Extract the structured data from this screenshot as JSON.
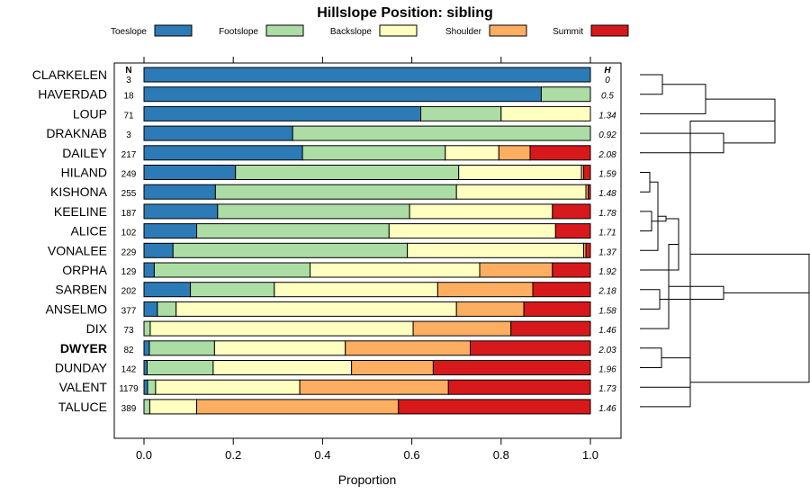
{
  "chart_data": {
    "type": "bar",
    "stacked": true,
    "orientation": "horizontal",
    "title": "Hillslope Position: sibling",
    "xlabel": "Proportion",
    "xlim": [
      0,
      1
    ],
    "xticks": [
      "0.0",
      "0.2",
      "0.4",
      "0.6",
      "0.8",
      "1.0"
    ],
    "n_header": "N",
    "h_header": "H",
    "legend": [
      {
        "name": "Toeslope",
        "color": "#2c7bb6"
      },
      {
        "name": "Footslope",
        "color": "#abdda4"
      },
      {
        "name": "Backslope",
        "color": "#ffffbf"
      },
      {
        "name": "Shoulder",
        "color": "#fdae61"
      },
      {
        "name": "Summit",
        "color": "#d7191c"
      }
    ],
    "highlight": "DWYER",
    "rows": [
      {
        "name": "CLARKELEN",
        "n": "3",
        "h": "0",
        "values": [
          1.0,
          0,
          0,
          0,
          0
        ]
      },
      {
        "name": "HAVERDAD",
        "n": "18",
        "h": "0.5",
        "values": [
          0.89,
          0.11,
          0,
          0,
          0
        ]
      },
      {
        "name": "LOUP",
        "n": "71",
        "h": "1.34",
        "values": [
          0.62,
          0.18,
          0.2,
          0,
          0
        ]
      },
      {
        "name": "DRAKNAB",
        "n": "3",
        "h": "0.92",
        "values": [
          0.333,
          0.667,
          0,
          0,
          0
        ]
      },
      {
        "name": "DAILEY",
        "n": "217",
        "h": "2.08",
        "values": [
          0.355,
          0.32,
          0.12,
          0.07,
          0.135
        ]
      },
      {
        "name": "HILAND",
        "n": "249",
        "h": "1.59",
        "values": [
          0.205,
          0.5,
          0.275,
          0.005,
          0.015
        ]
      },
      {
        "name": "KISHONA",
        "n": "255",
        "h": "1.48",
        "values": [
          0.16,
          0.54,
          0.29,
          0.005,
          0.005
        ]
      },
      {
        "name": "KEELINE",
        "n": "187",
        "h": "1.78",
        "values": [
          0.165,
          0.43,
          0.32,
          0,
          0.085
        ]
      },
      {
        "name": "ALICE",
        "n": "102",
        "h": "1.71",
        "values": [
          0.118,
          0.431,
          0.373,
          0,
          0.078
        ]
      },
      {
        "name": "VONALEE",
        "n": "229",
        "h": "1.37",
        "values": [
          0.065,
          0.525,
          0.395,
          0.005,
          0.01
        ]
      },
      {
        "name": "ORPHA",
        "n": "129",
        "h": "1.92",
        "values": [
          0.023,
          0.349,
          0.38,
          0.163,
          0.085
        ]
      },
      {
        "name": "SARBEN",
        "n": "202",
        "h": "2.18",
        "values": [
          0.104,
          0.188,
          0.366,
          0.213,
          0.129
        ]
      },
      {
        "name": "ANSELMO",
        "n": "377",
        "h": "1.58",
        "values": [
          0.03,
          0.042,
          0.628,
          0.151,
          0.149
        ]
      },
      {
        "name": "DIX",
        "n": "73",
        "h": "1.46",
        "values": [
          0.0,
          0.014,
          0.589,
          0.219,
          0.178
        ]
      },
      {
        "name": "DWYER",
        "n": "82",
        "h": "2.03",
        "values": [
          0.012,
          0.146,
          0.293,
          0.28,
          0.269
        ]
      },
      {
        "name": "DUNDAY",
        "n": "142",
        "h": "1.96",
        "values": [
          0.007,
          0.148,
          0.31,
          0.183,
          0.352
        ]
      },
      {
        "name": "VALENT",
        "n": "1179",
        "h": "1.73",
        "values": [
          0.008,
          0.018,
          0.323,
          0.333,
          0.318
        ]
      },
      {
        "name": "TALUCE",
        "n": "389",
        "h": "1.46",
        "values": [
          0.0,
          0.013,
          0.105,
          0.452,
          0.43
        ]
      }
    ]
  }
}
